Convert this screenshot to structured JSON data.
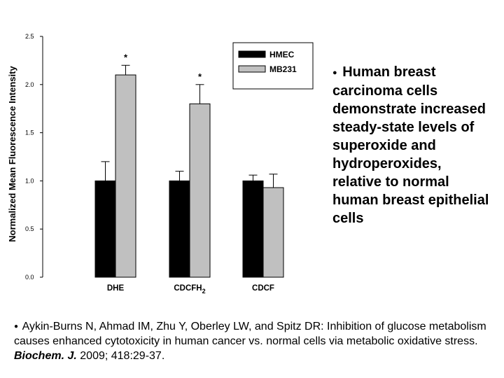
{
  "chart_data": {
    "type": "bar",
    "categories": [
      "DHE",
      "CDCFH2",
      "CDCF"
    ],
    "category_display": [
      {
        "main": "DHE",
        "sub": ""
      },
      {
        "main": "CDCFH",
        "sub": "2"
      },
      {
        "main": "CDCF",
        "sub": ""
      }
    ],
    "series": [
      {
        "name": "HMEC",
        "color": "#000000",
        "values": [
          1.0,
          1.0,
          1.0
        ],
        "errors": [
          0.2,
          0.1,
          0.06
        ]
      },
      {
        "name": "MB231",
        "color": "#c0c0c0",
        "values": [
          2.1,
          1.8,
          0.93
        ],
        "errors": [
          0.1,
          0.2,
          0.14
        ]
      }
    ],
    "significance": [
      [
        "*",
        "*",
        ""
      ],
      [
        "*",
        "*",
        ""
      ]
    ],
    "significance_series": "MB231",
    "ylabel": "Normalized Mean Fluorescence Intensity",
    "ylim": [
      0,
      2.5
    ],
    "yticks": [
      "0.0",
      "0.5",
      "1.0",
      "1.5",
      "2.0",
      "2.5"
    ],
    "legend_position": "top-right",
    "grid": false
  },
  "side_note": {
    "bullet": "●",
    "text": "Human breast carcinoma cells demonstrate increased steady-state levels of superoxide and hydroperoxides, relative to normal human breast epithelial cells"
  },
  "citation": {
    "bullet": "●",
    "text_before": "Aykin-Burns N, Ahmad IM, Zhu Y, Oberley LW, and Spitz DR: Inhibition of glucose metabolism causes enhanced cytotoxicity in human cancer vs. normal cells via metabolic oxidative stress.",
    "journal": "Biochem. J.",
    "text_after": "2009; 418:29-37."
  }
}
